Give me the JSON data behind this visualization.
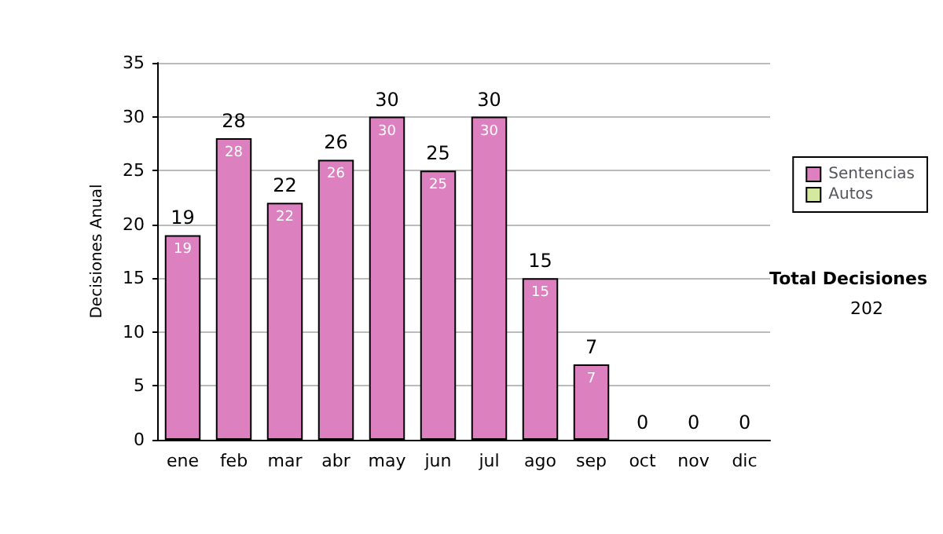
{
  "chart_data": {
    "type": "bar",
    "ylabel": "Decisiones Anual",
    "categories": [
      "ene",
      "feb",
      "mar",
      "abr",
      "may",
      "jun",
      "jul",
      "ago",
      "sep",
      "oct",
      "nov",
      "dic"
    ],
    "series": [
      {
        "name": "Sentencias",
        "color": "#dd80c0",
        "values": [
          19,
          28,
          22,
          26,
          30,
          25,
          30,
          15,
          7,
          0,
          0,
          0
        ],
        "value_labels": [
          "19",
          "28",
          "22",
          "26",
          "30",
          "25",
          "30",
          "15",
          "7",
          null,
          null,
          null
        ]
      },
      {
        "name": "Autos",
        "color": "#d4e8a0",
        "values": [
          0,
          0,
          0,
          0,
          0,
          0,
          0,
          0,
          0,
          0,
          0,
          0
        ]
      }
    ],
    "stacked": true,
    "totals": [
      "19",
      "28",
      "22",
      "26",
      "30",
      "25",
      "30",
      "15",
      "7",
      "0",
      "0",
      "0"
    ],
    "ylim": [
      0,
      35
    ],
    "yticks": [
      0,
      5,
      10,
      15,
      20,
      25,
      30,
      35
    ],
    "grid": "y",
    "legend": "right",
    "annotations": [
      "Total Decisiones",
      "202"
    ]
  }
}
